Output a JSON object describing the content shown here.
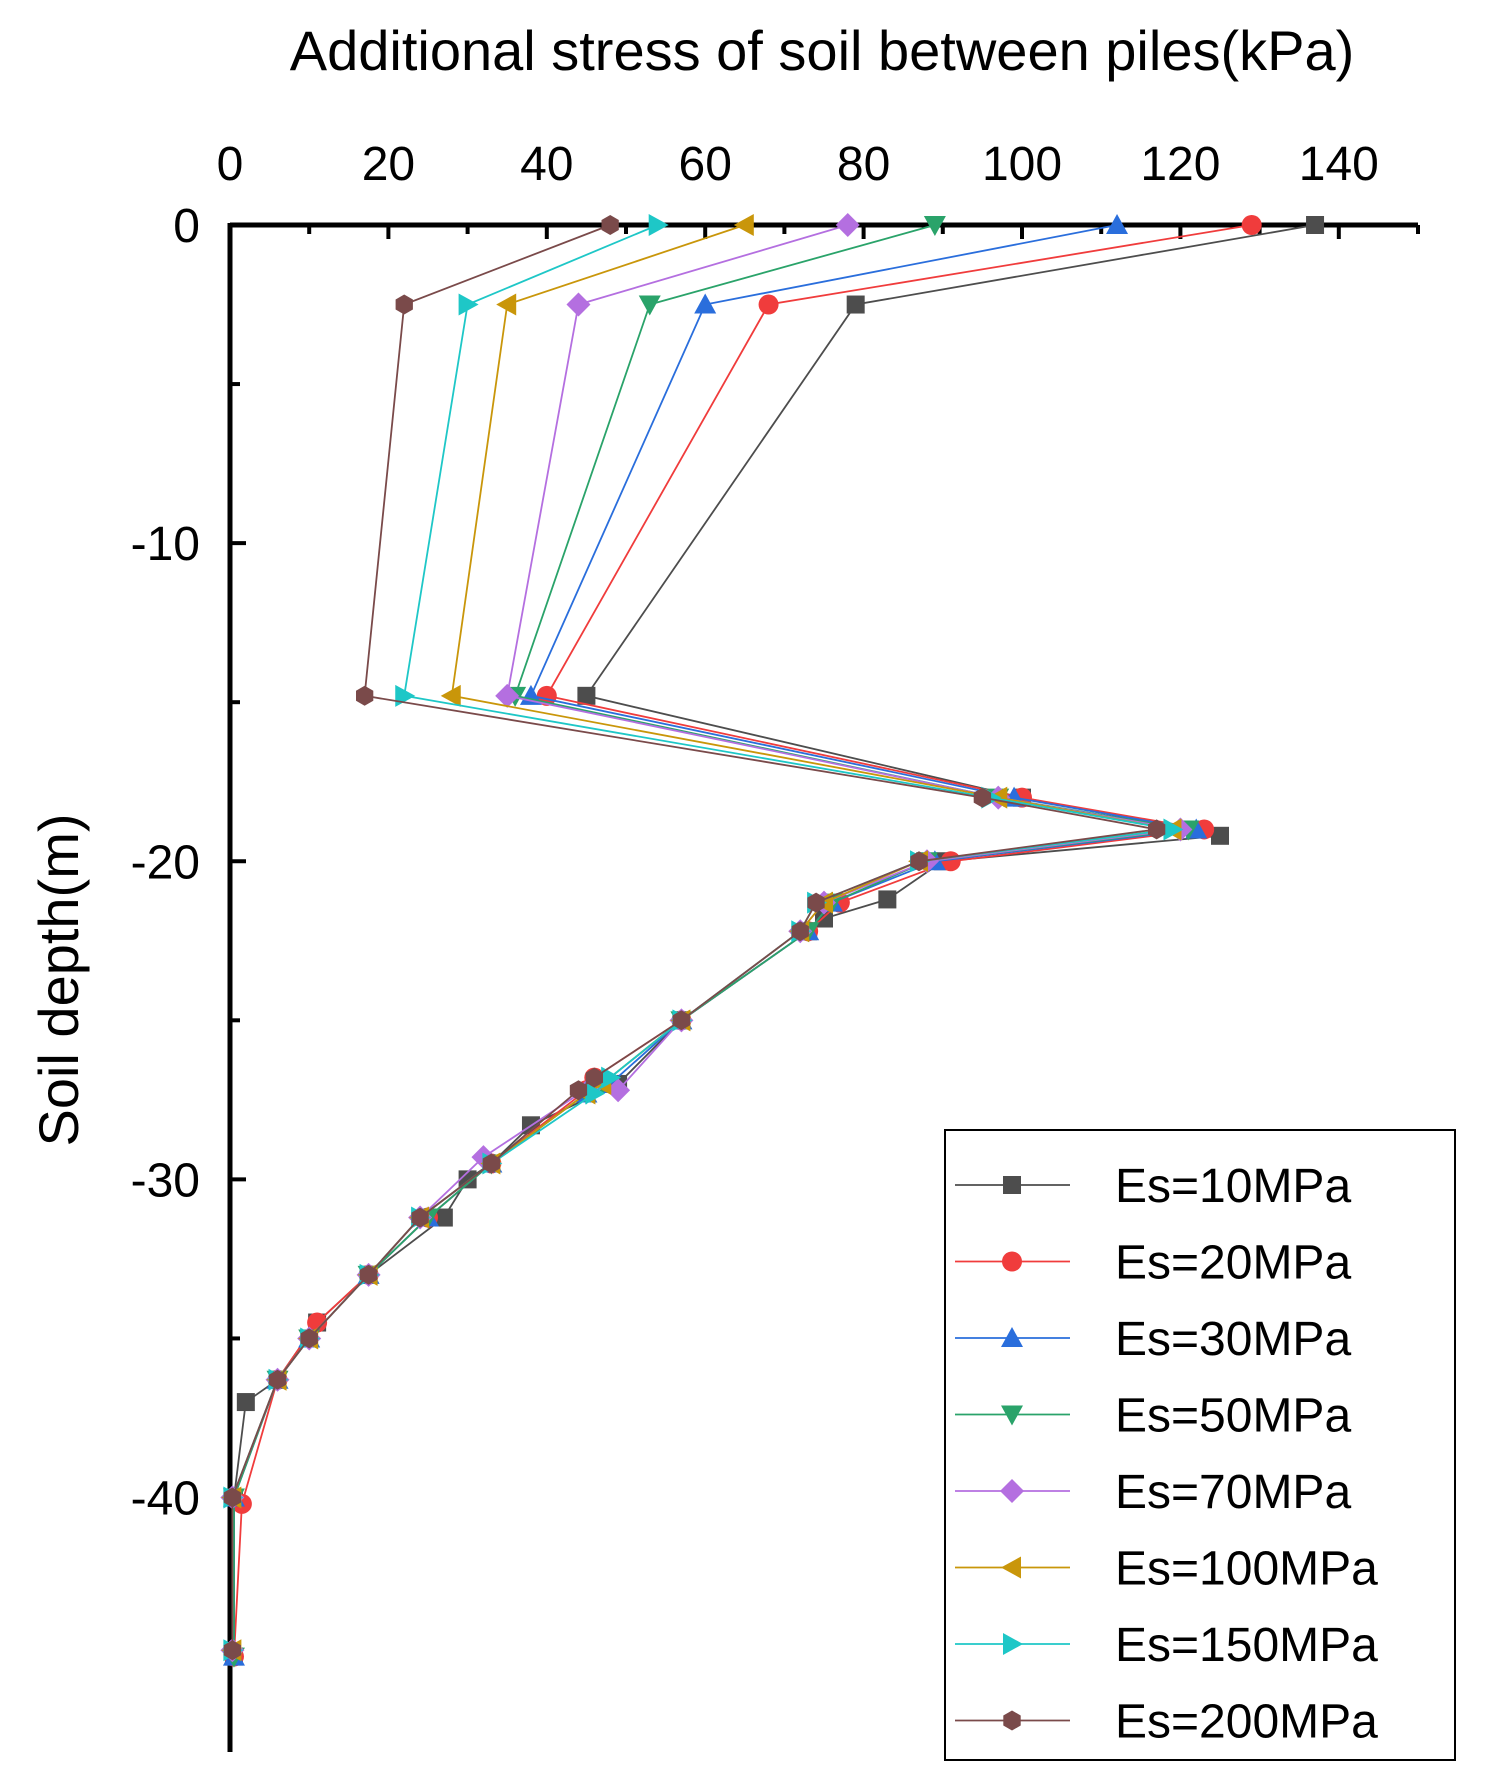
{
  "chart_data": {
    "type": "line",
    "title": "",
    "xlabel": "Additional stress of soil between piles(kPa)",
    "ylabel": "Soil depth(m)",
    "x_axis_position": "top",
    "xlim": [
      0,
      150
    ],
    "ylim": [
      -48,
      0
    ],
    "xticks": [
      0,
      20,
      40,
      60,
      80,
      100,
      120,
      140
    ],
    "yticks": [
      0,
      -10,
      -20,
      -30,
      -40
    ],
    "legend_position": "bottom-right",
    "series": [
      {
        "name": "Es=10MPa",
        "color": "#4d4d4d",
        "marker": "square",
        "points": [
          [
            137,
            0
          ],
          [
            79,
            -2.5
          ],
          [
            45,
            -14.8
          ],
          [
            100,
            -18
          ],
          [
            125,
            -19.2
          ],
          [
            90,
            -20
          ],
          [
            83,
            -21.2
          ],
          [
            75,
            -21.8
          ],
          [
            73,
            -22.2
          ],
          [
            57,
            -25
          ],
          [
            49,
            -27
          ],
          [
            38,
            -28.3
          ],
          [
            33,
            -29.5
          ],
          [
            30,
            -30
          ],
          [
            27,
            -31.2
          ],
          [
            17.5,
            -33
          ],
          [
            11,
            -34.5
          ],
          [
            6,
            -36.3
          ],
          [
            2,
            -37
          ],
          [
            0.5,
            -40
          ],
          [
            0.5,
            -45
          ]
        ]
      },
      {
        "name": "Es=20MPa",
        "color": "#f03c3c",
        "marker": "circle",
        "points": [
          [
            129,
            0
          ],
          [
            68,
            -2.5
          ],
          [
            40,
            -14.8
          ],
          [
            100,
            -18
          ],
          [
            123,
            -19
          ],
          [
            91,
            -20
          ],
          [
            77,
            -21.3
          ],
          [
            73,
            -22.2
          ],
          [
            57,
            -25
          ],
          [
            46,
            -26.8
          ],
          [
            45,
            -27.2
          ],
          [
            33,
            -29.5
          ],
          [
            25,
            -31.2
          ],
          [
            17.5,
            -33
          ],
          [
            11,
            -34.5
          ],
          [
            6,
            -36.3
          ],
          [
            1.5,
            -40.2
          ],
          [
            0.5,
            -45
          ]
        ]
      },
      {
        "name": "Es=30MPa",
        "color": "#2a6edc",
        "marker": "triangle-up",
        "points": [
          [
            112,
            0
          ],
          [
            60,
            -2.5
          ],
          [
            38,
            -14.8
          ],
          [
            99,
            -18
          ],
          [
            122,
            -19
          ],
          [
            89,
            -20
          ],
          [
            76,
            -21.3
          ],
          [
            73,
            -22.2
          ],
          [
            57,
            -25
          ],
          [
            48,
            -27
          ],
          [
            45,
            -27.3
          ],
          [
            33,
            -29.5
          ],
          [
            25,
            -31.2
          ],
          [
            17.5,
            -33
          ],
          [
            10,
            -35
          ],
          [
            6,
            -36.3
          ],
          [
            0.5,
            -40
          ],
          [
            0.5,
            -45
          ]
        ]
      },
      {
        "name": "Es=50MPa",
        "color": "#2aa36a",
        "marker": "triangle-down",
        "points": [
          [
            89,
            0
          ],
          [
            53,
            -2.5
          ],
          [
            36,
            -14.8
          ],
          [
            97,
            -18
          ],
          [
            121,
            -19
          ],
          [
            88,
            -20
          ],
          [
            76,
            -21.3
          ],
          [
            73,
            -22.2
          ],
          [
            57,
            -25
          ],
          [
            47,
            -27
          ],
          [
            45,
            -27.3
          ],
          [
            33,
            -29.5
          ],
          [
            25,
            -31.2
          ],
          [
            17.5,
            -33
          ],
          [
            10,
            -35
          ],
          [
            6,
            -36.3
          ],
          [
            0.5,
            -40
          ],
          [
            0.5,
            -45
          ]
        ]
      },
      {
        "name": "Es=70MPa",
        "color": "#b46fe0",
        "marker": "diamond",
        "points": [
          [
            78,
            0
          ],
          [
            44,
            -2.5
          ],
          [
            35,
            -14.8
          ],
          [
            97,
            -18
          ],
          [
            120,
            -19
          ],
          [
            88,
            -20
          ],
          [
            75,
            -21.3
          ],
          [
            72,
            -22.2
          ],
          [
            57,
            -25
          ],
          [
            49,
            -27.2
          ],
          [
            46,
            -27
          ],
          [
            32,
            -29.3
          ],
          [
            24,
            -31.2
          ],
          [
            17.5,
            -33
          ],
          [
            10,
            -35
          ],
          [
            6,
            -36.3
          ],
          [
            0.3,
            -40
          ],
          [
            0.3,
            -44.8
          ]
        ]
      },
      {
        "name": "Es=100MPa",
        "color": "#c9960a",
        "marker": "triangle-left",
        "points": [
          [
            65,
            0
          ],
          [
            35,
            -2.5
          ],
          [
            28,
            -14.8
          ],
          [
            97,
            -18
          ],
          [
            119,
            -19
          ],
          [
            87,
            -20
          ],
          [
            75,
            -21.3
          ],
          [
            72,
            -22.2
          ],
          [
            57,
            -25
          ],
          [
            47,
            -27
          ],
          [
            45,
            -27.3
          ],
          [
            33,
            -29.5
          ],
          [
            24,
            -31.2
          ],
          [
            17.5,
            -33
          ],
          [
            10,
            -35
          ],
          [
            6,
            -36.3
          ],
          [
            0.3,
            -40
          ],
          [
            0.3,
            -44.8
          ]
        ]
      },
      {
        "name": "Es=150MPa",
        "color": "#1ec7c7",
        "marker": "triangle-right",
        "points": [
          [
            54,
            0
          ],
          [
            30,
            -2.5
          ],
          [
            22,
            -14.8
          ],
          [
            96,
            -18
          ],
          [
            119,
            -19
          ],
          [
            87,
            -20
          ],
          [
            74,
            -21.3
          ],
          [
            72,
            -22.2
          ],
          [
            57,
            -25
          ],
          [
            48,
            -26.8
          ],
          [
            46,
            -27.3
          ],
          [
            33,
            -29.5
          ],
          [
            24,
            -31.2
          ],
          [
            17.5,
            -33
          ],
          [
            10,
            -35
          ],
          [
            6,
            -36.3
          ],
          [
            0.3,
            -40
          ],
          [
            0.3,
            -44.8
          ]
        ]
      },
      {
        "name": "Es=200MPa",
        "color": "#7a4a4a",
        "marker": "hexagon",
        "points": [
          [
            48,
            0
          ],
          [
            22,
            -2.5
          ],
          [
            17,
            -14.8
          ],
          [
            95,
            -18
          ],
          [
            117,
            -19
          ],
          [
            87,
            -20
          ],
          [
            74,
            -21.3
          ],
          [
            72,
            -22.2
          ],
          [
            57,
            -25
          ],
          [
            46,
            -26.8
          ],
          [
            44,
            -27.2
          ],
          [
            33,
            -29.5
          ],
          [
            24,
            -31.2
          ],
          [
            17.5,
            -33
          ],
          [
            10,
            -35
          ],
          [
            6,
            -36.3
          ],
          [
            0.3,
            -40
          ],
          [
            0.3,
            -44.8
          ]
        ]
      }
    ]
  }
}
